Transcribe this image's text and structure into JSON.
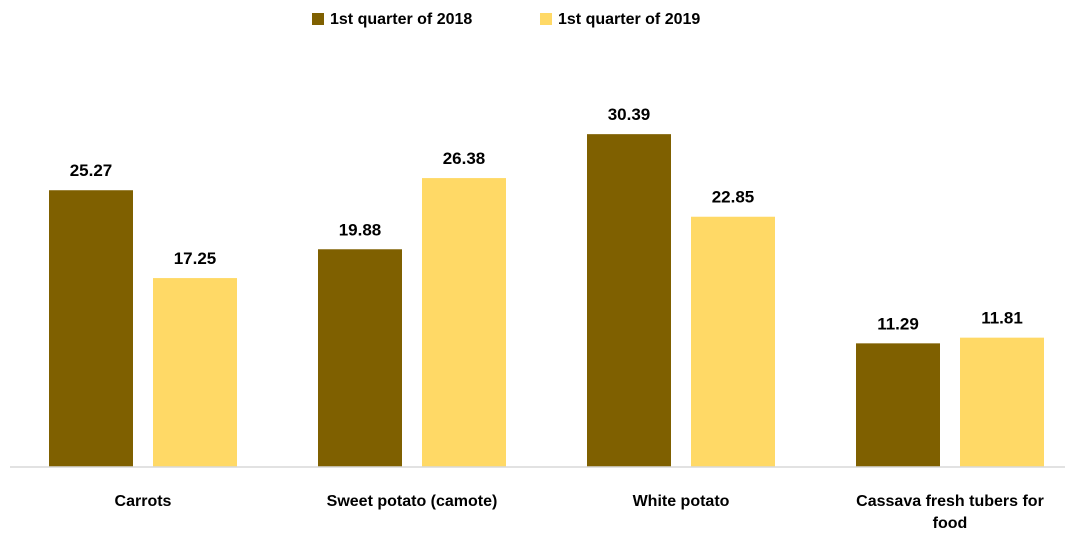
{
  "chart_data": {
    "type": "bar",
    "title": "",
    "xlabel": "",
    "ylabel": "",
    "categories": [
      [
        "Carrots"
      ],
      [
        "Sweet potato (camote)"
      ],
      [
        "White potato"
      ],
      [
        "Cassava fresh tubers for",
        "food"
      ]
    ],
    "series": [
      {
        "name": "1st quarter of 2018",
        "color": "#7F6000",
        "values": [
          25.27,
          19.88,
          30.39,
          11.29
        ]
      },
      {
        "name": "1st quarter of 2019",
        "color": "#FFD966",
        "values": [
          17.25,
          26.38,
          22.85,
          11.81
        ]
      }
    ],
    "value_labels": [
      [
        "25.27",
        "19.88",
        "30.39",
        "11.29"
      ],
      [
        "17.25",
        "26.38",
        "22.85",
        "11.81"
      ]
    ],
    "ylim": [
      0,
      31.5
    ],
    "grid": false,
    "legend_position": "top-center",
    "axis_color": "#D9D9D9"
  }
}
